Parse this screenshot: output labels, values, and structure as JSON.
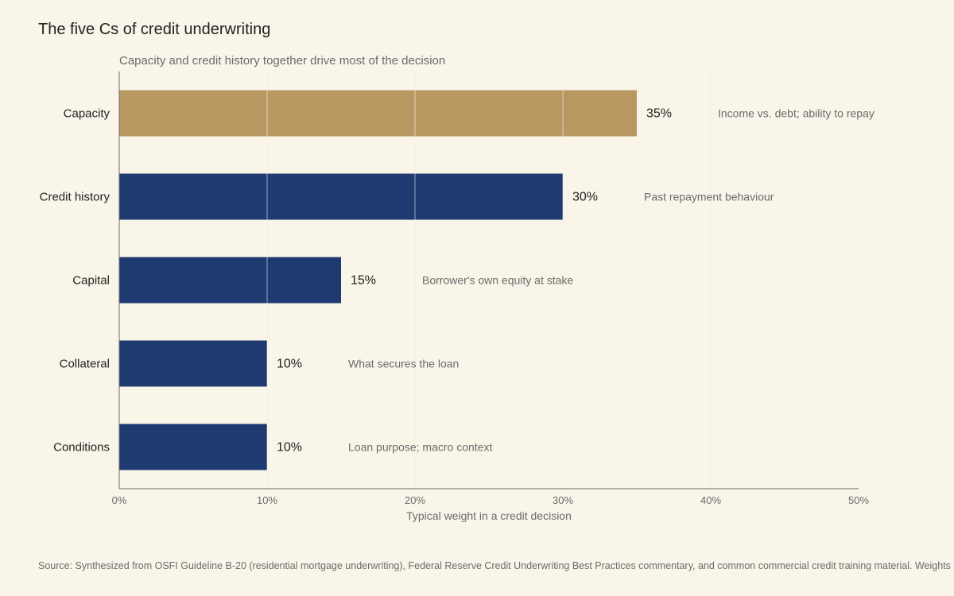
{
  "chart_data": {
    "type": "bar",
    "orientation": "horizontal",
    "title": "The five Cs of credit underwriting",
    "subtitle": "Capacity and credit history together drive most of the decision",
    "xlabel": "Typical weight in a credit decision",
    "ylabel": "",
    "xlim": [
      0,
      50
    ],
    "x_ticks": [
      0,
      10,
      20,
      30,
      40,
      50
    ],
    "x_tick_labels": [
      "0%",
      "10%",
      "20%",
      "30%",
      "40%",
      "50%"
    ],
    "categories": [
      "Capacity",
      "Credit history",
      "Capital",
      "Collateral",
      "Conditions"
    ],
    "values": [
      35,
      30,
      15,
      10,
      10
    ],
    "value_labels": [
      "35%",
      "30%",
      "15%",
      "10%",
      "10%"
    ],
    "annotations": [
      "Income vs. debt; ability to repay",
      "Past repayment behaviour",
      "Borrower's own equity at stake",
      "What secures the loan",
      "Loan purpose; macro context"
    ],
    "highlighted_category": "Capacity",
    "grid": true,
    "source": "Source: Synthesized from OSFI Guideline B-20 (residential mortgage underwriting), Federal Reserve Credit Underwriting Best Practices commentary, and common commercial credit training material. Weights are illustrative."
  },
  "colors": {
    "background": "#f9f5e9",
    "bar": "#1f3a70",
    "highlight": "#b99760",
    "grid": "#e6dfc2",
    "axis": "#6b6b6b"
  }
}
